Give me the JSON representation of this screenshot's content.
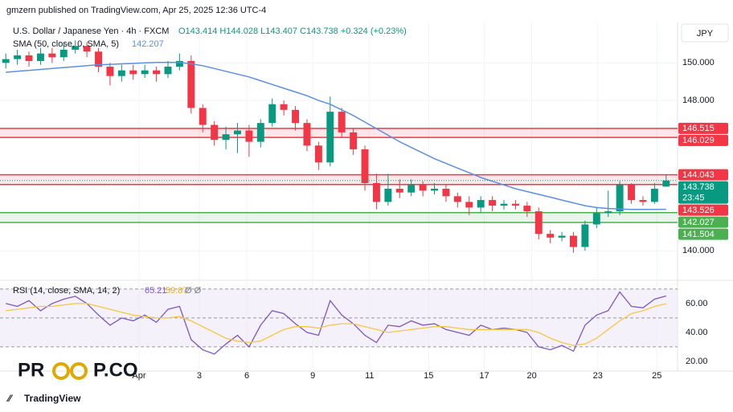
{
  "header": {
    "publisher": "gmzern published on TradingView.com, Apr 25, 2025 12:36 UTC-4",
    "footer": "TradingView",
    "watermark_left": "PR",
    "watermark_right": "P.CO"
  },
  "chart_data": [
    {
      "type": "candlestick",
      "title": "U.S. Dollar / Japanese Yen · 4h · FXCM",
      "ohlc_text": "O143.414 H144.028 L143.407 C143.738 +0.324 (+0.23%)",
      "currency": "JPY",
      "timer": "23:45",
      "up_color": "#089981",
      "down_color": "#f23645",
      "open": [
        150.0,
        150.2,
        150.4,
        150.1,
        150.5,
        150.3,
        150.7,
        150.9,
        150.6,
        149.8,
        149.3,
        149.6,
        149.4,
        149.6,
        149.4,
        149.8,
        150.1,
        147.6,
        146.7,
        145.9,
        146.2,
        146.4,
        145.8,
        146.8,
        147.8,
        147.5,
        146.8,
        145.6,
        144.7,
        147.4,
        146.3,
        145.4,
        143.6,
        142.6,
        143.3,
        143.1,
        143.5,
        143.2,
        143.3,
        142.9,
        142.6,
        142.3,
        142.7,
        142.4,
        142.5,
        142.4,
        142.1,
        140.9,
        140.7,
        140.8,
        140.2,
        141.4,
        142.0,
        142.1,
        143.5,
        142.7,
        142.6,
        143.414
      ],
      "high": [
        150.5,
        150.7,
        150.6,
        150.8,
        150.8,
        151.0,
        151.2,
        151.1,
        150.8,
        150.0,
        149.9,
        149.9,
        149.9,
        149.8,
        150.1,
        150.5,
        150.4,
        147.8,
        146.9,
        146.6,
        146.8,
        146.7,
        147.0,
        148.1,
        148.0,
        147.7,
        147.0,
        145.8,
        148.2,
        147.6,
        146.5,
        145.6,
        144.1,
        144.1,
        143.8,
        143.8,
        143.7,
        143.6,
        143.5,
        143.1,
        142.9,
        142.9,
        142.9,
        142.7,
        142.7,
        142.6,
        142.3,
        141.1,
        141.0,
        141.0,
        141.6,
        142.3,
        143.2,
        143.7,
        143.6,
        142.9,
        143.6,
        144.028
      ],
      "low": [
        149.7,
        149.9,
        149.8,
        149.9,
        150.0,
        150.1,
        150.5,
        150.3,
        149.5,
        148.8,
        149.0,
        149.1,
        149.2,
        149.0,
        149.2,
        149.6,
        147.3,
        146.3,
        145.6,
        145.4,
        145.2,
        145.0,
        145.5,
        146.6,
        147.2,
        146.4,
        145.3,
        144.3,
        144.5,
        146.0,
        145.1,
        143.2,
        142.2,
        142.4,
        142.8,
        142.9,
        142.9,
        143.0,
        142.6,
        142.3,
        141.9,
        142.0,
        142.1,
        142.2,
        142.2,
        141.8,
        140.6,
        140.4,
        140.5,
        139.9,
        140.0,
        141.2,
        141.8,
        141.9,
        142.5,
        142.4,
        142.5,
        143.407
      ],
      "close": [
        150.2,
        150.4,
        150.1,
        150.5,
        150.3,
        150.7,
        150.9,
        150.6,
        149.8,
        149.3,
        149.6,
        149.4,
        149.6,
        149.4,
        149.8,
        150.1,
        147.6,
        146.7,
        145.9,
        146.2,
        146.4,
        145.8,
        146.8,
        147.8,
        147.5,
        146.8,
        145.6,
        144.7,
        147.4,
        146.3,
        145.4,
        143.6,
        142.6,
        143.3,
        143.1,
        143.5,
        143.2,
        143.3,
        142.9,
        142.6,
        142.3,
        142.7,
        142.4,
        142.5,
        142.4,
        142.1,
        140.9,
        140.7,
        140.8,
        140.2,
        141.4,
        142.0,
        142.1,
        143.5,
        142.7,
        142.6,
        143.3,
        143.738
      ],
      "series": [
        {
          "name": "SMA (50, close, 0, SMA, 5)",
          "color": "#5b8fe6",
          "values": [
            149.5,
            149.55,
            149.6,
            149.65,
            149.7,
            149.75,
            149.8,
            149.85,
            149.9,
            149.92,
            149.95,
            149.97,
            150.0,
            150.02,
            150.03,
            150.02,
            149.95,
            149.85,
            149.7,
            149.55,
            149.4,
            149.25,
            149.05,
            148.85,
            148.65,
            148.45,
            148.25,
            148.0,
            147.8,
            147.5,
            147.2,
            146.85,
            146.5,
            146.15,
            145.8,
            145.5,
            145.2,
            144.9,
            144.65,
            144.4,
            144.15,
            143.9,
            143.7,
            143.5,
            143.3,
            143.15,
            143.0,
            142.85,
            142.7,
            142.55,
            142.4,
            142.3,
            142.25,
            142.22,
            142.2,
            142.2,
            142.2,
            142.207
          ]
        }
      ],
      "zones": [
        {
          "top": 146.515,
          "bottom": 146.029,
          "color": "#f23645"
        },
        {
          "top": 144.043,
          "bottom": 143.526,
          "color": "#f23645"
        },
        {
          "top": 142.027,
          "bottom": 141.504,
          "color": "#4caf50"
        }
      ],
      "ylim": [
        138.47,
        152.15
      ],
      "yticks": [
        {
          "value": 150,
          "label": "150.000"
        },
        {
          "value": 148,
          "label": "148.000"
        },
        {
          "value": 140,
          "label": "140.000"
        }
      ],
      "xlim": [
        -0.5,
        57.5
      ],
      "xticks": [
        {
          "value": 11.5,
          "label": "Apr"
        },
        {
          "value": 16.7,
          "label": "3"
        },
        {
          "value": 20.8,
          "label": "6"
        },
        {
          "value": 26.5,
          "label": "9"
        },
        {
          "value": 31.4,
          "label": "11"
        },
        {
          "value": 36.5,
          "label": "15"
        },
        {
          "value": 41.3,
          "label": "17"
        },
        {
          "value": 45.4,
          "label": "20"
        },
        {
          "value": 51.1,
          "label": "23"
        },
        {
          "value": 56.2,
          "label": "25"
        }
      ],
      "grid": true
    },
    {
      "type": "line",
      "title": "RSI (14, close, SMA, 14, 2)",
      "extra": "Ø Ø",
      "series": [
        {
          "color": "#7e57c2",
          "values": [
            60,
            58,
            62,
            55,
            60,
            63,
            65,
            60,
            52,
            45,
            50,
            48,
            52,
            47,
            56,
            58,
            35,
            28,
            25,
            32,
            38,
            30,
            45,
            55,
            53,
            46,
            40,
            38,
            62,
            52,
            46,
            38,
            33,
            45,
            44,
            48,
            45,
            46,
            42,
            40,
            38,
            45,
            42,
            43,
            42,
            40,
            30,
            28,
            31,
            27,
            45,
            52,
            55,
            68,
            58,
            57,
            63,
            65.21
          ]
        },
        {
          "color": "#f5c842",
          "values": [
            55,
            56,
            57,
            58,
            58,
            59,
            60,
            60,
            58,
            56,
            54,
            52,
            51,
            50,
            50,
            51,
            48,
            44,
            40,
            36,
            34,
            33,
            34,
            38,
            42,
            44,
            44,
            43,
            45,
            46,
            46,
            44,
            42,
            40,
            41,
            42,
            43,
            44,
            44,
            43,
            42,
            42,
            42,
            42,
            42,
            42,
            40,
            36,
            33,
            31,
            32,
            36,
            42,
            48,
            53,
            55,
            58,
            59.87
          ]
        }
      ],
      "levels": [
        70,
        50,
        30
      ],
      "band_color": "#ede7f6",
      "ylim": [
        14.4,
        74.4
      ],
      "yticks": [
        {
          "value": 60,
          "label": "60.00"
        },
        {
          "value": 40,
          "label": "40.00"
        },
        {
          "value": 20,
          "label": "20.00"
        }
      ],
      "xlim": [
        -0.5,
        57.5
      ]
    }
  ]
}
